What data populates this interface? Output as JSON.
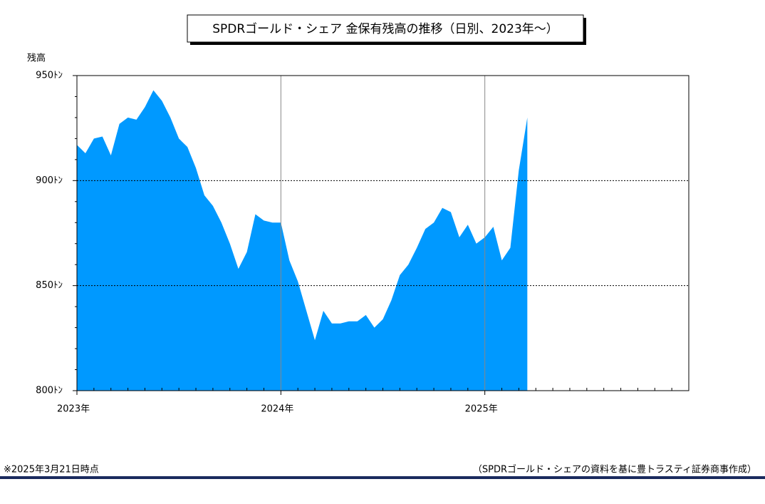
{
  "chart_data": {
    "type": "area",
    "title": "SPDRゴールド・シェア 金保有残高の推移（日別、2023年～）",
    "y_label": "残高",
    "note_left": "※2025年3月21日時点",
    "note_right": "（SPDRゴールド・シェアの資料を基に豊トラスティ証券商事作成）",
    "color": "#0099ff",
    "categories": [
      "2023年",
      null,
      null,
      null,
      null,
      null,
      null,
      null,
      null,
      null,
      null,
      null,
      null,
      null,
      null,
      null,
      null,
      null,
      null,
      null,
      null,
      null,
      null,
      null,
      "2024年",
      null,
      null,
      null,
      null,
      null,
      null,
      null,
      null,
      null,
      null,
      null,
      null,
      null,
      null,
      null,
      null,
      null,
      null,
      null,
      null,
      null,
      null,
      null,
      "2025年",
      null,
      null,
      null,
      null,
      null,
      null,
      null,
      null,
      null,
      null,
      null,
      null,
      null,
      null,
      null,
      null,
      null,
      null,
      null,
      null,
      null,
      null,
      null,
      null
    ],
    "values": [
      917,
      913,
      920,
      921,
      912,
      927,
      930,
      929,
      935,
      943,
      938,
      930,
      920,
      916,
      906,
      893,
      888,
      880,
      870,
      858,
      866,
      884,
      881,
      880,
      880,
      862,
      852,
      838,
      824,
      838,
      832,
      832,
      833,
      833,
      836,
      830,
      834,
      843,
      855,
      860,
      868,
      877,
      880,
      887,
      885,
      873,
      879,
      870,
      873,
      878,
      862,
      868,
      905,
      930,
      null,
      null,
      null,
      null,
      null,
      null,
      null,
      null,
      null,
      null,
      null,
      null,
      null,
      null,
      null,
      null,
      null,
      null,
      null
    ],
    "ylim": [
      800,
      950
    ],
    "yticks": [
      {
        "value": 800,
        "label": "800ﾄﾝ"
      },
      {
        "value": 850,
        "label": "850ﾄﾝ"
      },
      {
        "value": 900,
        "label": "900ﾄﾝ"
      },
      {
        "value": 950,
        "label": "950ﾄﾝ"
      }
    ],
    "grid": true
  }
}
